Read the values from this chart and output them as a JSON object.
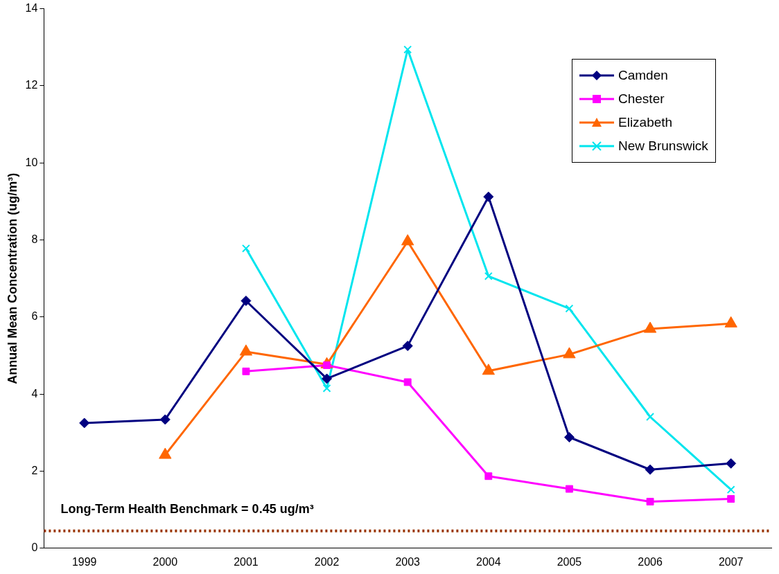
{
  "chart_data": {
    "type": "line",
    "ylabel": "Annual Mean Concentration (ug/m³)",
    "categories": [
      "1999",
      "2000",
      "2001",
      "2002",
      "2003",
      "2004",
      "2005",
      "2006",
      "2007"
    ],
    "series": [
      {
        "name": "Camden",
        "color": "#000080",
        "marker": "diamond",
        "values": [
          3.25,
          3.34,
          6.42,
          4.4,
          5.25,
          9.12,
          2.88,
          2.04,
          2.2
        ]
      },
      {
        "name": "Chester",
        "color": "#ff00ff",
        "marker": "square",
        "values": [
          null,
          null,
          4.59,
          4.75,
          4.31,
          1.87,
          1.54,
          1.21,
          1.28
        ]
      },
      {
        "name": "Elizabeth",
        "color": "#ff6600",
        "marker": "triangle",
        "values": [
          null,
          2.42,
          5.1,
          4.77,
          7.96,
          4.6,
          5.03,
          5.69,
          5.83
        ]
      },
      {
        "name": "New Brunswick",
        "color": "#00e5ee",
        "marker": "cross",
        "values": [
          null,
          null,
          7.78,
          4.15,
          12.94,
          7.06,
          6.22,
          3.41,
          1.52
        ]
      }
    ],
    "ylim": [
      0,
      14
    ],
    "yticks": [
      0,
      2,
      4,
      6,
      8,
      10,
      12,
      14
    ],
    "ref_lines": [
      {
        "axis": "y",
        "value": 0.45,
        "label": "Long-Term Health Benchmark = 0.45 ug/m³",
        "color": "#993300",
        "line_style": "dotted"
      }
    ],
    "grid": false,
    "legend": "top right"
  }
}
